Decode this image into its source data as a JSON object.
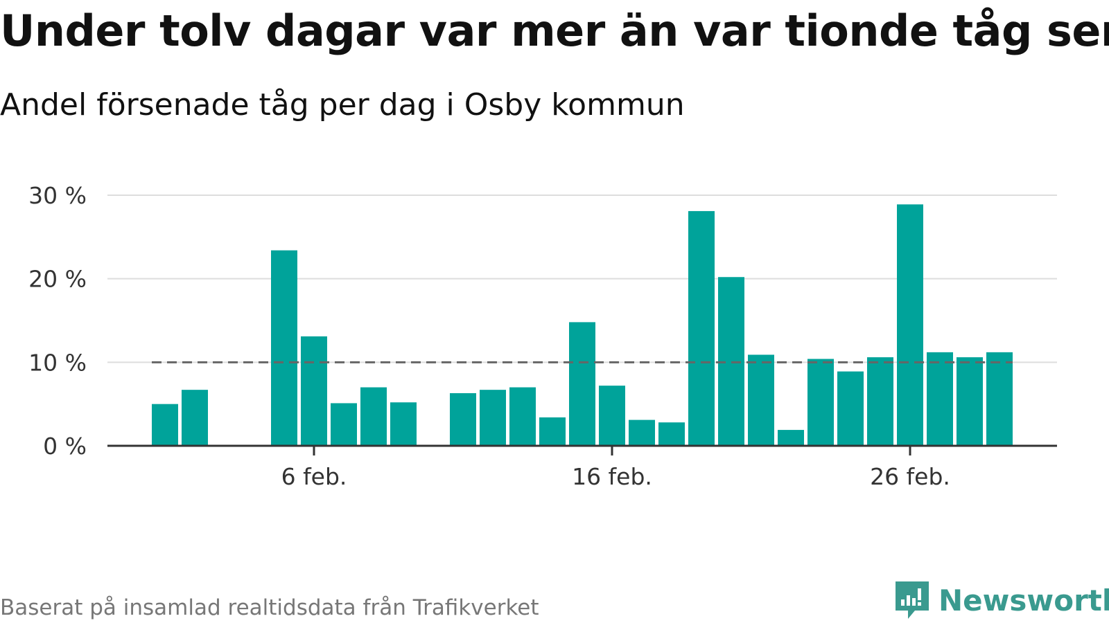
{
  "title": "Under tolv dagar var mer än var tionde tåg sent",
  "subtitle": "Andel försenade tåg per dag i Osby kommun",
  "source": "Baserat på insamlad realtidsdata från Trafikverket",
  "brand": {
    "name": "Newsworthy",
    "icon": "newsworthy-logo-icon"
  },
  "colors": {
    "bar": "#00A39A",
    "reference": "#666666",
    "grid": "#dddddd",
    "axis": "#333333",
    "brand": "#3a9a8f"
  },
  "chart_data": {
    "type": "bar",
    "x_unit": "day of February",
    "x": [
      1,
      2,
      3,
      4,
      5,
      6,
      7,
      8,
      9,
      10,
      11,
      12,
      13,
      14,
      15,
      16,
      17,
      18,
      19,
      20,
      21,
      22,
      23,
      24,
      25,
      26,
      27,
      28,
      29
    ],
    "values": [
      5.0,
      6.7,
      null,
      null,
      23.4,
      13.1,
      5.1,
      7.0,
      5.2,
      null,
      6.3,
      6.7,
      7.0,
      3.4,
      14.8,
      7.2,
      3.1,
      2.8,
      28.1,
      20.2,
      10.9,
      1.9,
      10.4,
      8.9,
      10.6,
      28.9,
      11.2,
      10.6,
      11.2
    ],
    "reference_line": 10,
    "ylim": [
      0,
      30
    ],
    "y_ticks": [
      {
        "value": 0,
        "label": "0 %"
      },
      {
        "value": 10,
        "label": "10 %"
      },
      {
        "value": 20,
        "label": "20 %"
      },
      {
        "value": 30,
        "label": "30 %"
      }
    ],
    "x_ticks": [
      {
        "value": 6,
        "label": "6 feb."
      },
      {
        "value": 16,
        "label": "16 feb."
      },
      {
        "value": 26,
        "label": "26 feb."
      }
    ],
    "grid": true,
    "legend": "none"
  }
}
